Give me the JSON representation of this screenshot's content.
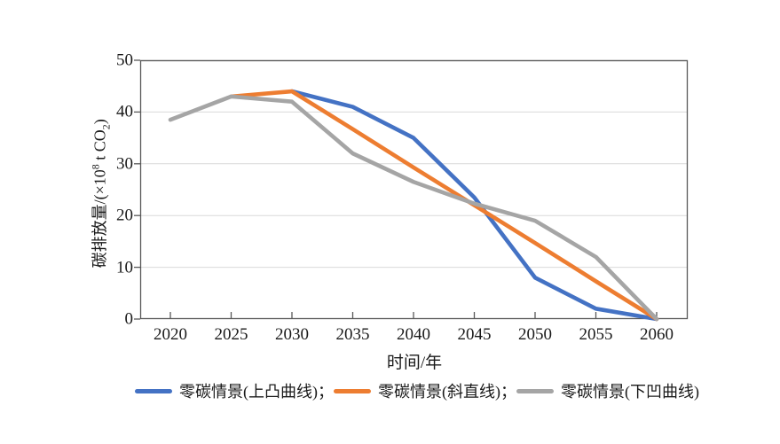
{
  "chart_data": {
    "type": "line",
    "title": "",
    "xlabel": "时间/年",
    "ylabel": "碳排放量/(×10⁸ t CO₂)",
    "ylabel_parts": {
      "p1": "碳排放量/(×10",
      "sup": "8",
      "p2": " t CO",
      "sub": "2",
      "p3": ")"
    },
    "x": [
      2020,
      2025,
      2030,
      2035,
      2040,
      2045,
      2050,
      2055,
      2060
    ],
    "x_tick_labels": [
      "2020",
      "2025",
      "2030",
      "2035",
      "2040",
      "2045",
      "2050",
      "2055",
      "2060"
    ],
    "yticks": [
      0,
      10,
      20,
      30,
      40,
      50
    ],
    "ylim": [
      0,
      50
    ],
    "grid": "horizontal",
    "legend_position": "bottom",
    "series": [
      {
        "name": "零碳情景(上凸曲线)",
        "legend_label": "零碳情景(上凸曲线)；",
        "color": "#4472C4",
        "values": [
          null,
          null,
          44,
          41,
          35,
          23.5,
          8,
          2,
          0
        ]
      },
      {
        "name": "零碳情景(斜直线)",
        "legend_label": "零碳情景(斜直线)；",
        "color": "#ED7D31",
        "values": [
          null,
          43,
          44,
          36.7,
          29.3,
          22,
          14.7,
          7.3,
          0
        ]
      },
      {
        "name": "零碳情景(下凹曲线)",
        "legend_label": "零碳情景(下凹曲线)",
        "color": "#A5A5A5",
        "values": [
          38.5,
          43,
          42,
          32,
          26.5,
          22.3,
          19,
          12,
          0
        ]
      }
    ],
    "colors": {
      "gridline": "#d9d9d9",
      "axis_border": "#595959",
      "text": "#1a1a1a"
    }
  }
}
